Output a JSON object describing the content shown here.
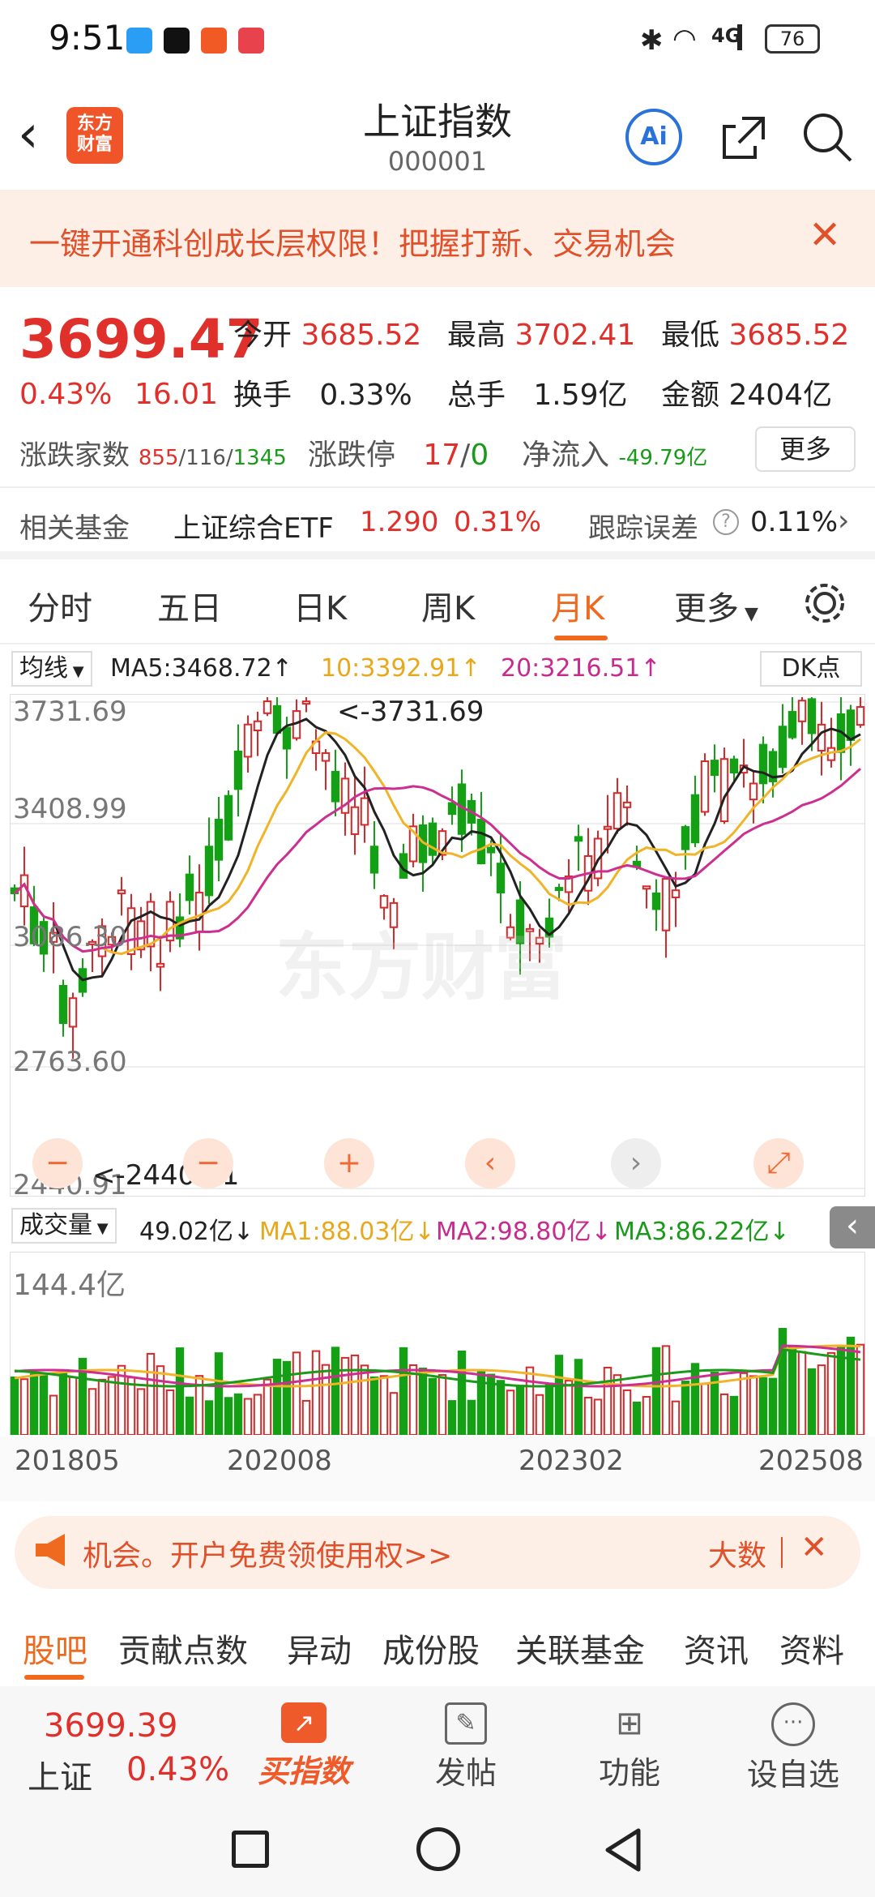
{
  "status": {
    "time": "9:51",
    "battery": "76",
    "network": "4G"
  },
  "header": {
    "title": "上证指数",
    "code": "000001",
    "logo_line1": "东方",
    "logo_line2": "财富",
    "ai_label": "Ai"
  },
  "banner": {
    "text": "一键开通科创成长层权限！把握打新、交易机会"
  },
  "quote": {
    "price": "3699.47",
    "pct": "0.43%",
    "chg": "16.01",
    "open_label": "今开",
    "open": "3685.52",
    "high_label": "最高",
    "high": "3702.41",
    "low_label": "最低",
    "low": "3685.52",
    "turnover_label": "换手",
    "turnover": "0.33%",
    "vol_label": "总手",
    "vol": "1.59亿",
    "amt_label": "金额",
    "amt": "2404亿",
    "adv_label": "涨跌家数",
    "adv_up": "855",
    "adv_flat": "116",
    "adv_down": "1345",
    "limit_label": "涨跌停",
    "limit_up": "17",
    "limit_down": "0",
    "inflow_label": "净流入",
    "inflow": "-49.79亿",
    "more_label": "更多"
  },
  "fund": {
    "label": "相关基金",
    "name": "上证综合ETF",
    "price": "1.290",
    "pct": "0.31%",
    "err_label": "跟踪误差",
    "err": "0.11%"
  },
  "tabs": [
    "分时",
    "五日",
    "日K",
    "周K",
    "月K",
    "更多"
  ],
  "active_tab": 4,
  "ma": {
    "label": "均线",
    "ma5": "MA5:3468.72↑",
    "ma10": "10:3392.91↑",
    "ma20": "20:3216.51↑",
    "dk": "DK点"
  },
  "vol_ind": {
    "label": "成交量",
    "v": "49.02亿↓",
    "ma1": "MA1:88.03亿↓",
    "ma2": "MA2:98.80亿↓",
    "ma3": "MA3:86.22亿↓"
  },
  "chart_data": {
    "type": "candlestick",
    "y_ticks": [
      "3731.69",
      "3408.99",
      "3086.30",
      "2763.60",
      "2440.91"
    ],
    "max_label": "<-3731.69",
    "min_label": "<-2440.91",
    "vol_tick": "144.4亿",
    "x_ticks": [
      "201805",
      "202008",
      "202302",
      "202508"
    ],
    "colors": {
      "up": "#d8282a",
      "down": "#14a014",
      "ma5": "#222222",
      "ma10": "#f0b429",
      "ma20": "#cc2f8f"
    }
  },
  "promo": {
    "text": "机会。开户免费领使用权>>",
    "right": "大数"
  },
  "navtabs": [
    "股吧",
    "贡献点数",
    "异动",
    "成份股",
    "关联基金",
    "资讯",
    "资料"
  ],
  "bottom": {
    "price": "3699.39",
    "name": "上证",
    "pct": "0.43%",
    "items": [
      "买指数",
      "发帖",
      "功能",
      "设自选"
    ]
  },
  "watermark": "东方财富"
}
